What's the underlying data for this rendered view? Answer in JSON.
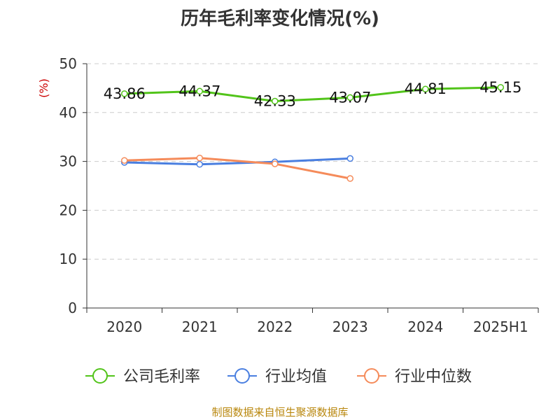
{
  "title": "历年毛利率变化情况(%)",
  "footer": "制图数据来自恒生聚源数据库",
  "chart_data": {
    "type": "line",
    "categories": [
      "2020",
      "2021",
      "2022",
      "2023",
      "2024",
      "2025H1"
    ],
    "ylabel": "(%)",
    "ylim": [
      0,
      50
    ],
    "yticks": [
      0,
      10,
      20,
      30,
      40,
      50
    ],
    "grid": true,
    "legend_position": "bottom",
    "series": [
      {
        "name": "公司毛利率",
        "color": "#52c41a",
        "values": [
          43.86,
          44.37,
          42.33,
          43.07,
          44.81,
          45.15
        ],
        "labels": [
          "43.86",
          "44.37",
          "42.33",
          "43.07",
          "44.81",
          "45.15"
        ]
      },
      {
        "name": "行业均值",
        "color": "#4a7fe0",
        "values": [
          29.8,
          29.4,
          29.9,
          30.6,
          null,
          null
        ]
      },
      {
        "name": "行业中位数",
        "color": "#f58b5a",
        "values": [
          30.2,
          30.7,
          29.5,
          26.5,
          null,
          null
        ]
      }
    ]
  }
}
